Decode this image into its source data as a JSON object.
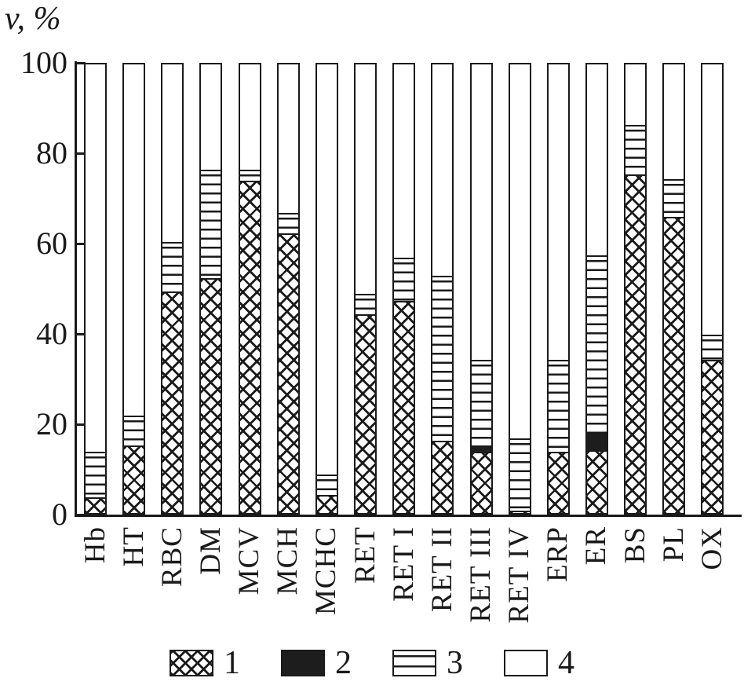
{
  "chart_data": {
    "type": "bar",
    "subtype": "stacked-percent",
    "title": "",
    "ylabel": "v, %",
    "xlabel": "",
    "ylim": [
      0,
      100
    ],
    "yticks": [
      0,
      20,
      40,
      60,
      80,
      100
    ],
    "grid": false,
    "legend_position": "bottom",
    "categories": [
      "Hb",
      "HT",
      "RBC",
      "DM",
      "MCV",
      "MCH",
      "MCHC",
      "RET",
      "RET I",
      "RET II",
      "RET III",
      "RET IV",
      "ERP",
      "ER",
      "BS",
      "PL",
      "OX"
    ],
    "series": [
      {
        "name": "1",
        "pattern": "crosshatch",
        "values": [
          3.5,
          15,
          49,
          52,
          73.5,
          62,
          4,
          44,
          47,
          16,
          13.5,
          0.5,
          13.5,
          14,
          75,
          65.5,
          34
        ]
      },
      {
        "name": "2",
        "pattern": "solid-black",
        "values": [
          0,
          0,
          0,
          0,
          0,
          0,
          0,
          0,
          0,
          0,
          1.5,
          0,
          0,
          4,
          0,
          0,
          0
        ]
      },
      {
        "name": "3",
        "pattern": "horizontal-lines",
        "values": [
          10,
          6.5,
          11,
          24,
          2.5,
          4.5,
          4.5,
          4.5,
          9.5,
          36.5,
          19,
          16,
          20.5,
          39,
          11,
          8.5,
          5.5
        ]
      },
      {
        "name": "4",
        "pattern": "white",
        "values": [
          86.5,
          78.5,
          40,
          24,
          24,
          33.5,
          91.5,
          51.5,
          43.5,
          47.5,
          66,
          83.5,
          66,
          43,
          14,
          26,
          60.5
        ]
      }
    ],
    "colors": {
      "ink": "#1a1a1a",
      "fill_black": "#1d1d1d",
      "background": "#ffffff"
    }
  }
}
